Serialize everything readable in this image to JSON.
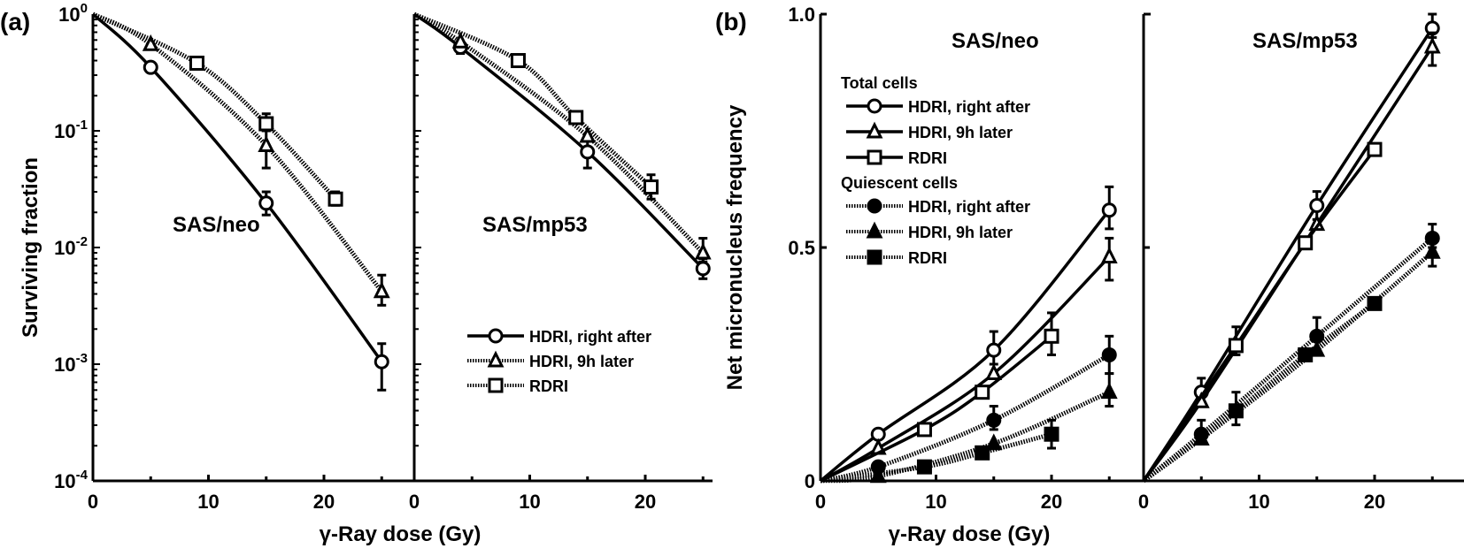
{
  "chart_data": [
    {
      "id": "a",
      "panel_label": "(a)",
      "type": "line",
      "yscale": "log",
      "ylabel": "Surviving fraction",
      "xlabel": "γ-Ray dose (Gy)",
      "ylim": [
        0.0001,
        1
      ],
      "xlim": [
        0,
        26
      ],
      "yticks": [
        {
          "value": 1,
          "label": "10",
          "exp": "0"
        },
        {
          "value": 0.1,
          "label": "10",
          "exp": "-1"
        },
        {
          "value": 0.01,
          "label": "10",
          "exp": "-2"
        },
        {
          "value": 0.001,
          "label": "10",
          "exp": "-3"
        },
        {
          "value": 0.0001,
          "label": "10",
          "exp": "-4"
        }
      ],
      "xticks": [
        0,
        10,
        20
      ],
      "legend": {
        "placement": "center-right of second subplot",
        "entries": [
          {
            "label": "HDRI, right after",
            "marker": "circle-open",
            "line": "solid"
          },
          {
            "label": "HDRI, 9h later",
            "marker": "triangle-open",
            "line": "dotted"
          },
          {
            "label": "RDRI",
            "marker": "square-open",
            "line": "dotted"
          }
        ]
      },
      "subplots": [
        {
          "title": "SAS/neo",
          "series": [
            {
              "name": "HDRI, right after",
              "marker": "circle-open",
              "line": "solid",
              "points": [
                [
                  0,
                  1
                ],
                [
                  5,
                  0.35
                ],
                [
                  15,
                  0.024
                ],
                [
                  25,
                  0.00105
                ]
              ],
              "errors": [
                [
                  15,
                  0.019,
                  0.03
                ],
                [
                  25,
                  0.0006,
                  0.0015
                ]
              ]
            },
            {
              "name": "HDRI, 9h later",
              "marker": "triangle-open",
              "line": "dotted",
              "points": [
                [
                  0,
                  1
                ],
                [
                  5,
                  0.55
                ],
                [
                  15,
                  0.075
                ],
                [
                  25,
                  0.0042
                ]
              ],
              "errors": [
                [
                  15,
                  0.048,
                  0.1
                ],
                [
                  25,
                  0.0032,
                  0.0058
                ]
              ]
            },
            {
              "name": "RDRI",
              "marker": "square-open",
              "line": "dotted",
              "points": [
                [
                  0,
                  1
                ],
                [
                  9,
                  0.38
                ],
                [
                  15,
                  0.115
                ],
                [
                  21,
                  0.026
                ]
              ],
              "errors": [
                [
                  15,
                  0.1,
                  0.14
                ],
                [
                  21,
                  0.023,
                  0.03
                ]
              ]
            }
          ]
        },
        {
          "title": "SAS/mp53",
          "series": [
            {
              "name": "HDRI, right after",
              "marker": "circle-open",
              "line": "solid",
              "points": [
                [
                  0,
                  1
                ],
                [
                  4,
                  0.52
                ],
                [
                  15,
                  0.066
                ],
                [
                  25,
                  0.0066
                ]
              ],
              "errors": [
                [
                  4,
                  0.46,
                  0.58
                ],
                [
                  15,
                  0.048,
                  0.085
                ],
                [
                  25,
                  0.0054,
                  0.008
                ]
              ]
            },
            {
              "name": "HDRI, 9h later",
              "marker": "triangle-open",
              "line": "dotted",
              "points": [
                [
                  0,
                  1
                ],
                [
                  4,
                  0.58
                ],
                [
                  15,
                  0.09
                ],
                [
                  25,
                  0.009
                ]
              ],
              "errors": [
                [
                  25,
                  0.0075,
                  0.012
                ]
              ]
            },
            {
              "name": "RDRI",
              "marker": "square-open",
              "line": "dotted",
              "points": [
                [
                  0,
                  1
                ],
                [
                  9,
                  0.4
                ],
                [
                  14,
                  0.13
                ],
                [
                  20.5,
                  0.033
                ]
              ],
              "errors": [
                [
                  20.5,
                  0.026,
                  0.042
                ]
              ]
            }
          ]
        }
      ]
    },
    {
      "id": "b",
      "panel_label": "(b)",
      "type": "line",
      "yscale": "linear",
      "ylabel": "Net micronucleus frequency",
      "xlabel": "γ-Ray dose (Gy)",
      "ylim": [
        0,
        1.0
      ],
      "xlim": [
        0,
        26
      ],
      "yticks": [
        {
          "value": 0,
          "label": "0"
        },
        {
          "value": 0.5,
          "label": "0.5"
        },
        {
          "value": 1.0,
          "label": "1.0"
        }
      ],
      "xticks": [
        0,
        10,
        20
      ],
      "legend": {
        "placement": "upper-left of first subplot",
        "groups": [
          {
            "title": "Total cells",
            "entries": [
              {
                "label": "HDRI, right after",
                "marker": "circle-open",
                "line": "solid"
              },
              {
                "label": "HDRI, 9h later",
                "marker": "triangle-open",
                "line": "solid"
              },
              {
                "label": "RDRI",
                "marker": "square-open",
                "line": "solid"
              }
            ]
          },
          {
            "title": "Quiescent cells",
            "entries": [
              {
                "label": "HDRI, right after",
                "marker": "circle-filled",
                "line": "dotted"
              },
              {
                "label": "HDRI, 9h later",
                "marker": "triangle-filled",
                "line": "dotted"
              },
              {
                "label": "RDRI",
                "marker": "square-filled",
                "line": "dotted"
              }
            ]
          }
        ]
      },
      "subplots": [
        {
          "title": "SAS/neo",
          "series": [
            {
              "name": "Total cells - HDRI, right after",
              "marker": "circle-open",
              "line": "solid",
              "points": [
                [
                  0,
                  0
                ],
                [
                  5,
                  0.1
                ],
                [
                  15,
                  0.28
                ],
                [
                  25,
                  0.58
                ]
              ],
              "errors": [
                [
                  15,
                  0.25,
                  0.32
                ],
                [
                  25,
                  0.54,
                  0.63
                ]
              ]
            },
            {
              "name": "Total cells - HDRI, 9h later",
              "marker": "triangle-open",
              "line": "solid",
              "points": [
                [
                  0,
                  0
                ],
                [
                  5,
                  0.07
                ],
                [
                  15,
                  0.23
                ],
                [
                  25,
                  0.48
                ]
              ],
              "errors": [
                [
                  25,
                  0.43,
                  0.52
                ]
              ]
            },
            {
              "name": "Total cells - RDRI",
              "marker": "square-open",
              "line": "solid",
              "points": [
                [
                  0,
                  0
                ],
                [
                  9,
                  0.11
                ],
                [
                  14,
                  0.19
                ],
                [
                  20,
                  0.31
                ]
              ],
              "errors": [
                [
                  20,
                  0.27,
                  0.36
                ]
              ]
            },
            {
              "name": "Quiescent cells - HDRI, right after",
              "marker": "circle-filled",
              "line": "dotted",
              "points": [
                [
                  0,
                  0
                ],
                [
                  5,
                  0.03
                ],
                [
                  15,
                  0.13
                ],
                [
                  25,
                  0.27
                ]
              ],
              "errors": [
                [
                  15,
                  0.11,
                  0.16
                ],
                [
                  25,
                  0.23,
                  0.31
                ]
              ]
            },
            {
              "name": "Quiescent cells - HDRI, 9h later",
              "marker": "triangle-filled",
              "line": "dotted",
              "points": [
                [
                  0,
                  0
                ],
                [
                  5,
                  0.01
                ],
                [
                  15,
                  0.08
                ],
                [
                  25,
                  0.19
                ]
              ],
              "errors": [
                [
                  25,
                  0.16,
                  0.23
                ]
              ]
            },
            {
              "name": "Quiescent cells - RDRI",
              "marker": "square-filled",
              "line": "dotted",
              "points": [
                [
                  0,
                  0
                ],
                [
                  9,
                  0.03
                ],
                [
                  14,
                  0.06
                ],
                [
                  20,
                  0.1
                ]
              ],
              "errors": [
                [
                  20,
                  0.07,
                  0.13
                ]
              ]
            }
          ]
        },
        {
          "title": "SAS/mp53",
          "series": [
            {
              "name": "Total cells - HDRI, right after",
              "marker": "circle-open",
              "line": "solid",
              "points": [
                [
                  0,
                  0
                ],
                [
                  5,
                  0.19
                ],
                [
                  15,
                  0.59
                ],
                [
                  25,
                  0.97
                ]
              ],
              "errors": [
                [
                  5,
                  0.17,
                  0.22
                ],
                [
                  15,
                  0.56,
                  0.62
                ],
                [
                  25,
                  0.95,
                  1.0
                ]
              ]
            },
            {
              "name": "Total cells - HDRI, 9h later",
              "marker": "triangle-open",
              "line": "solid",
              "points": [
                [
                  0,
                  0
                ],
                [
                  5,
                  0.17
                ],
                [
                  15,
                  0.55
                ],
                [
                  25,
                  0.93
                ]
              ],
              "errors": [
                [
                  25,
                  0.89,
                  0.96
                ]
              ]
            },
            {
              "name": "Total cells - RDRI",
              "marker": "square-open",
              "line": "solid",
              "points": [
                [
                  0,
                  0
                ],
                [
                  8,
                  0.29
                ],
                [
                  14,
                  0.51
                ],
                [
                  20,
                  0.71
                ]
              ],
              "errors": [
                [
                  8,
                  0.27,
                  0.33
                ]
              ]
            },
            {
              "name": "Quiescent cells - HDRI, right after",
              "marker": "circle-filled",
              "line": "dotted",
              "points": [
                [
                  0,
                  0
                ],
                [
                  5,
                  0.1
                ],
                [
                  15,
                  0.31
                ],
                [
                  25,
                  0.52
                ]
              ],
              "errors": [
                [
                  5,
                  0.08,
                  0.13
                ],
                [
                  15,
                  0.28,
                  0.35
                ],
                [
                  25,
                  0.5,
                  0.55
                ]
              ]
            },
            {
              "name": "Quiescent cells - HDRI, 9h later",
              "marker": "triangle-filled",
              "line": "dotted",
              "points": [
                [
                  0,
                  0
                ],
                [
                  5,
                  0.09
                ],
                [
                  15,
                  0.28
                ],
                [
                  25,
                  0.49
                ]
              ],
              "errors": [
                [
                  25,
                  0.46,
                  0.52
                ]
              ]
            },
            {
              "name": "Quiescent cells - RDRI",
              "marker": "square-filled",
              "line": "dotted",
              "points": [
                [
                  0,
                  0
                ],
                [
                  8,
                  0.15
                ],
                [
                  14,
                  0.27
                ],
                [
                  20,
                  0.38
                ]
              ],
              "errors": [
                [
                  8,
                  0.12,
                  0.19
                ]
              ]
            }
          ]
        }
      ]
    }
  ]
}
